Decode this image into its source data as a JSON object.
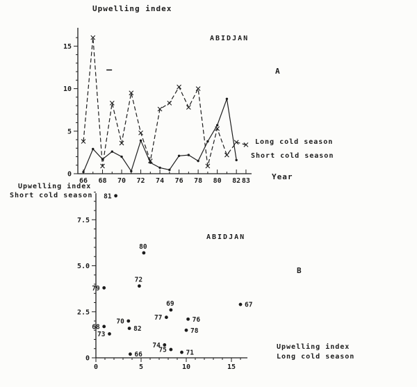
{
  "figure": {
    "background": "#fcfcfa",
    "ink": "#1c1c1c",
    "description": "Scanned two-panel figure of upwelling index at Abidjan"
  },
  "labels": {
    "b_y_line1": "Upwelling index",
    "b_y_line2": "Short cold season",
    "b_x_line1": "Upwelling index",
    "b_x_line2": "Long cold season"
  },
  "chart_data": [
    {
      "type": "line",
      "panel": "A",
      "title": "ABIDJAN",
      "ylabel": "Upwelling index",
      "xlabel": "Year",
      "xlim": [
        65.5,
        84
      ],
      "ylim": [
        0,
        17
      ],
      "grid": false,
      "legend_position": "right-of-line-ends",
      "x": [
        66,
        67,
        68,
        69,
        70,
        71,
        72,
        73,
        74,
        75,
        76,
        77,
        78,
        79,
        80,
        81,
        82,
        83
      ],
      "x_ticks": {
        "labeled": [
          66,
          68,
          70,
          72,
          74,
          76,
          78,
          80,
          82,
          83
        ],
        "labels": [
          "66",
          "68",
          "70",
          "72",
          "74",
          "76",
          "78",
          "80",
          "82",
          "83"
        ],
        "minor_step": 1
      },
      "y_ticks": {
        "labeled": [
          0,
          5,
          10,
          15
        ],
        "labels": [
          "0",
          "5",
          "10",
          "15"
        ],
        "minor_step": 1,
        "minor_max": 16
      },
      "series": [
        {
          "name": "Long cold season",
          "line_style": "dashed",
          "marker": "x",
          "values": [
            3.8,
            16.0,
            0.9,
            8.3,
            3.6,
            9.5,
            4.8,
            1.5,
            7.6,
            8.3,
            10.2,
            7.8,
            10.0,
            0.9,
            5.3,
            2.2,
            3.7,
            3.4
          ]
        },
        {
          "name": "Short cold season",
          "line_style": "solid",
          "marker": "dot",
          "values": [
            0.2,
            2.9,
            1.7,
            2.6,
            2.0,
            0.3,
            3.9,
            1.3,
            0.7,
            0.45,
            2.1,
            2.2,
            1.5,
            3.8,
            5.7,
            8.8,
            1.6,
            null
          ]
        }
      ],
      "stray_mark": {
        "x": 68.7,
        "y": 12.2
      }
    },
    {
      "type": "scatter",
      "panel": "B",
      "title": "ABIDJAN",
      "ylabel": "Upwelling index Short cold season",
      "xlabel": "Upwelling index Long cold season",
      "xlim": [
        0,
        17
      ],
      "ylim": [
        0,
        9.3
      ],
      "grid": false,
      "x_ticks": {
        "labeled": [
          0,
          5,
          10,
          15
        ],
        "labels": [
          "0",
          "5",
          "10",
          "15"
        ],
        "minor_step": 1,
        "minor_max": 16
      },
      "y_ticks": {
        "labeled": [
          0,
          2.5,
          5,
          7.5
        ],
        "labels": [
          "0",
          "2.5",
          "5.0",
          "7.5"
        ],
        "minor_step": 0.5,
        "minor_max": 9
      },
      "points": [
        {
          "label": "66",
          "x": 3.8,
          "y": 0.2,
          "label_side": "right"
        },
        {
          "label": "67",
          "x": 16.0,
          "y": 2.9,
          "label_side": "right"
        },
        {
          "label": "68",
          "x": 0.9,
          "y": 1.7,
          "label_side": "left"
        },
        {
          "label": "69",
          "x": 8.3,
          "y": 2.6,
          "label_side": "above"
        },
        {
          "label": "70",
          "x": 3.6,
          "y": 2.0,
          "label_side": "left"
        },
        {
          "label": "71",
          "x": 9.5,
          "y": 0.3,
          "label_side": "right"
        },
        {
          "label": "72",
          "x": 4.8,
          "y": 3.9,
          "label_side": "above"
        },
        {
          "label": "73",
          "x": 1.5,
          "y": 1.3,
          "label_side": "left"
        },
        {
          "label": "74",
          "x": 7.6,
          "y": 0.7,
          "label_side": "left"
        },
        {
          "label": "75",
          "x": 8.3,
          "y": 0.45,
          "label_side": "left"
        },
        {
          "label": "76",
          "x": 10.2,
          "y": 2.1,
          "label_side": "right"
        },
        {
          "label": "77",
          "x": 7.8,
          "y": 2.2,
          "label_side": "left"
        },
        {
          "label": "78",
          "x": 10.0,
          "y": 1.5,
          "label_side": "right"
        },
        {
          "label": "79",
          "x": 0.9,
          "y": 3.8,
          "label_side": "left"
        },
        {
          "label": "80",
          "x": 5.3,
          "y": 5.7,
          "label_side": "above"
        },
        {
          "label": "81",
          "x": 2.2,
          "y": 8.8,
          "label_side": "left"
        },
        {
          "label": "82",
          "x": 3.7,
          "y": 1.6,
          "label_side": "right"
        }
      ]
    }
  ]
}
